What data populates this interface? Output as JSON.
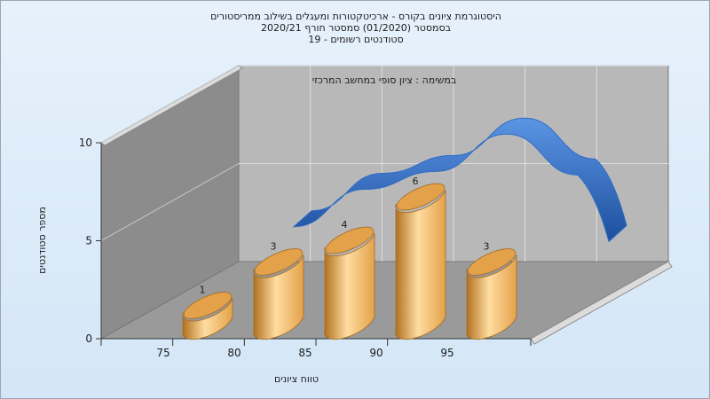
{
  "chart_data": {
    "type": "bar",
    "title_lines": [
      "היסטוגרמת ציונים בקורס - ארכיטקטורות ומעגלים בשילוב ממריסטורים",
      "בסמסטר  (01/2020)  סמסטר חורף  2020/21",
      "סטודנטים רשומים - 19"
    ],
    "subtitle": "במשימה : ציון סופי במחשב המרכזי",
    "xlabel": "טווח ציונים",
    "ylabel": "מספר סטודנטים",
    "ylim": [
      0,
      10
    ],
    "yticks": [
      0,
      5,
      10
    ],
    "xticks": [
      75,
      80,
      85,
      90,
      95
    ],
    "categories": [
      "75",
      "80",
      "85",
      "90",
      "95"
    ],
    "values": [
      1,
      3,
      4,
      6,
      3
    ],
    "data_labels": [
      "1",
      "3",
      "4",
      "6",
      "3"
    ],
    "curve_values": [
      3,
      5,
      6,
      8,
      6
    ],
    "grid": true,
    "legend": "none",
    "colors": {
      "bar": "#e3a24a",
      "bar_light": "#ffdca0",
      "bar_dark": "#b0701f",
      "curve": "#2f6cc4",
      "back_wall": "#b8b8b8",
      "side_wall": "#8c8c8c",
      "floor": "#9a9a9a"
    }
  }
}
